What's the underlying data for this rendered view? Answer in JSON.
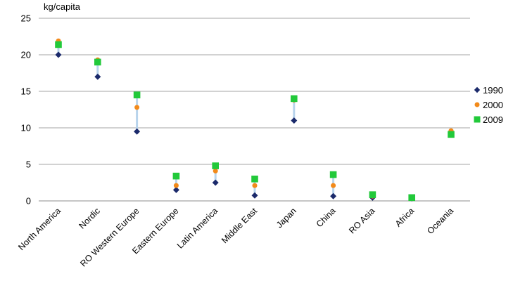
{
  "chart_data": {
    "type": "scatter",
    "ylabel": "kg/capita",
    "ylim": [
      0,
      25
    ],
    "yticks": [
      0,
      5,
      10,
      15,
      20,
      25
    ],
    "grid": true,
    "legend_position": "right",
    "categories": [
      "North America",
      "Nordic",
      "RO Western Europe",
      "Eastern Europe",
      "Latin America",
      "Middle East",
      "Japan",
      "China",
      "RO Asia",
      "Africa",
      "Oceania"
    ],
    "series": [
      {
        "name": "1990",
        "marker": "diamond",
        "color": "#1b2a6b",
        "values": [
          20.0,
          17.0,
          9.5,
          1.5,
          2.5,
          0.75,
          11.0,
          0.65,
          0.45,
          0.35,
          9.5
        ]
      },
      {
        "name": "2000",
        "marker": "circle",
        "color": "#f28a1a",
        "values": [
          21.9,
          19.3,
          12.8,
          2.1,
          4.1,
          2.1,
          13.8,
          2.1,
          0.65,
          0.45,
          9.6
        ]
      },
      {
        "name": "2009",
        "marker": "square",
        "color": "#22c93a",
        "values": [
          21.4,
          19.0,
          14.5,
          3.4,
          4.8,
          3.0,
          14.0,
          3.6,
          0.85,
          0.45,
          9.1
        ]
      }
    ],
    "range_line_color": "#b8d4ec"
  }
}
